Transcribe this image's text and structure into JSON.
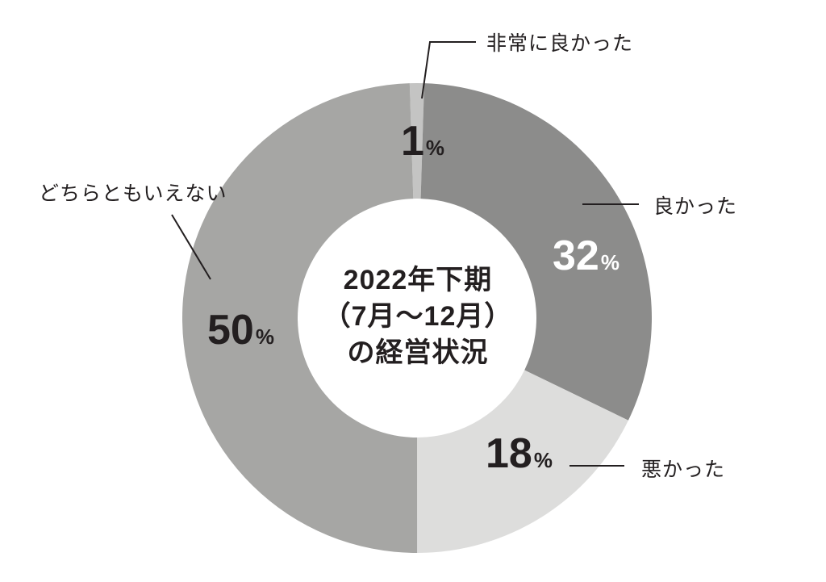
{
  "page": {
    "background_color": "#ffffff",
    "text_color": "#231f20"
  },
  "chart_data": {
    "type": "pie",
    "variant": "donut",
    "title": "2022年下期（7月～12月）の経営状況",
    "title_lines": [
      "2022年下期",
      "（7月～12月）",
      "の経営状況"
    ],
    "unit": "%",
    "direction": "clockwise",
    "start_angle_deg": -1.8,
    "legend_position": "callout-labels",
    "total": 100,
    "segments": [
      {
        "id": "very-good",
        "label": "非常に良かった",
        "value": 1,
        "display": "1",
        "color": "#c4c4c3",
        "value_text_color": "#231f20"
      },
      {
        "id": "good",
        "label": "良かった",
        "value": 32,
        "display": "32",
        "color": "#8c8c8b",
        "value_text_color": "#ffffff"
      },
      {
        "id": "bad",
        "label": "悪かった",
        "value": 18,
        "display": "18",
        "color": "#dddddc",
        "value_text_color": "#231f20"
      },
      {
        "id": "neither",
        "label": "どちらともいえない",
        "value": 50,
        "display": "50",
        "color": "#a6a6a4",
        "value_text_color": "#231f20"
      }
    ],
    "leader_line_color": "#231f20"
  }
}
